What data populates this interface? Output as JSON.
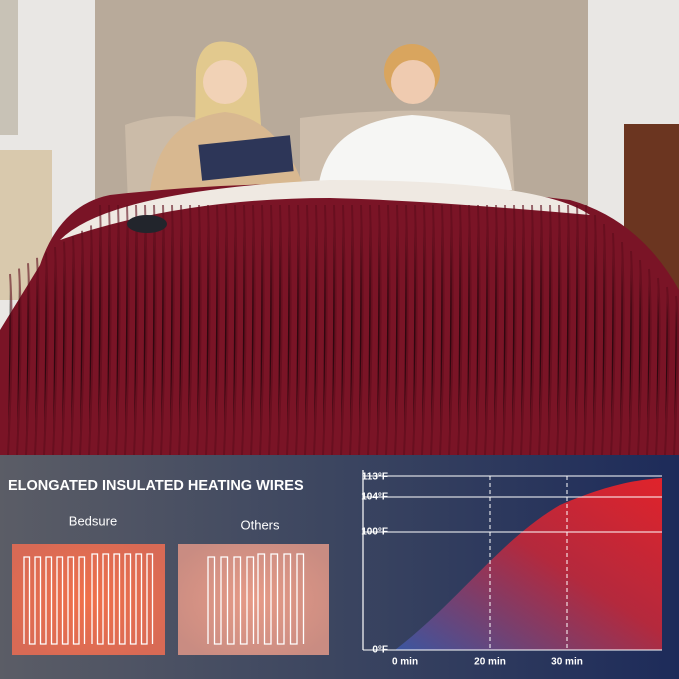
{
  "heading": "ELONGATED INSULATED HEATING WIRES",
  "panels": [
    {
      "label": "Bedsure"
    },
    {
      "label": "Others"
    }
  ],
  "graph": {
    "y_labels": [
      "113°F",
      "104°F",
      "100°F",
      "0°F"
    ],
    "x_labels": [
      "0 min",
      "20 min",
      "30 min"
    ]
  }
}
